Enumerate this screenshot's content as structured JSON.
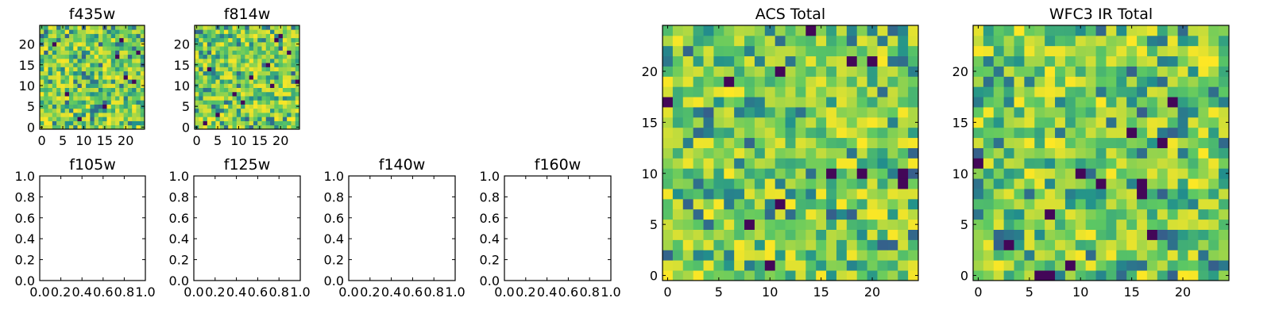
{
  "figure": {
    "background": "#ffffff",
    "colormap": [
      "#440154",
      "#3b528b",
      "#21918c",
      "#5ec962",
      "#fde725"
    ]
  },
  "chart_data": [
    {
      "type": "heatmap",
      "title": "f435w",
      "grid_size": [
        25,
        25
      ],
      "colormap": "viridis",
      "x": {
        "range": [
          -0.5,
          24.5
        ],
        "ticks": [
          0,
          5,
          10,
          15,
          20
        ]
      },
      "y": {
        "range": [
          -0.5,
          24.5
        ],
        "ticks": [
          0,
          5,
          10,
          15,
          20
        ]
      },
      "dark_cells": [
        [
          19,
          21
        ],
        [
          23,
          18
        ],
        [
          20,
          12
        ],
        [
          22,
          11
        ],
        [
          9,
          2
        ],
        [
          18,
          17
        ],
        [
          6,
          8
        ],
        [
          15,
          5
        ],
        [
          3,
          20
        ]
      ]
    },
    {
      "type": "heatmap",
      "title": "f814w",
      "grid_size": [
        25,
        25
      ],
      "colormap": "viridis",
      "x": {
        "range": [
          -0.5,
          24.5
        ],
        "ticks": [
          0,
          5,
          10,
          15,
          20
        ]
      },
      "y": {
        "range": [
          -0.5,
          24.5
        ],
        "ticks": [
          0,
          5,
          10,
          15,
          20
        ]
      },
      "dark_cells": [
        [
          20,
          22
        ],
        [
          19,
          21
        ],
        [
          22,
          18
        ],
        [
          3,
          14
        ],
        [
          13,
          12
        ],
        [
          24,
          11
        ],
        [
          18,
          10
        ],
        [
          11,
          6
        ],
        [
          5,
          3
        ],
        [
          2,
          1
        ],
        [
          17,
          15
        ],
        [
          9,
          8
        ]
      ]
    },
    {
      "type": "line",
      "title": "f105w",
      "empty": true,
      "x": {
        "range": [
          0,
          1
        ],
        "ticks": [
          "0.0",
          "0.2",
          "0.4",
          "0.6",
          "0.8",
          "1.0"
        ]
      },
      "y": {
        "range": [
          0,
          1
        ],
        "ticks": [
          "0.0",
          "0.2",
          "0.4",
          "0.6",
          "0.8",
          "1.0"
        ]
      }
    },
    {
      "type": "line",
      "title": "f125w",
      "empty": true,
      "x": {
        "range": [
          0,
          1
        ],
        "ticks": [
          "0.0",
          "0.2",
          "0.4",
          "0.6",
          "0.8",
          "1.0"
        ]
      },
      "y": {
        "range": [
          0,
          1
        ],
        "ticks": [
          "0.0",
          "0.2",
          "0.4",
          "0.6",
          "0.8",
          "1.0"
        ]
      }
    },
    {
      "type": "line",
      "title": "f140w",
      "empty": true,
      "x": {
        "range": [
          0,
          1
        ],
        "ticks": [
          "0.0",
          "0.2",
          "0.4",
          "0.6",
          "0.8",
          "1.0"
        ]
      },
      "y": {
        "range": [
          0,
          1
        ],
        "ticks": [
          "0.0",
          "0.2",
          "0.4",
          "0.6",
          "0.8",
          "1.0"
        ]
      }
    },
    {
      "type": "line",
      "title": "f160w",
      "empty": true,
      "x": {
        "range": [
          0,
          1
        ],
        "ticks": [
          "0.0",
          "0.2",
          "0.4",
          "0.6",
          "0.8",
          "1.0"
        ]
      },
      "y": {
        "range": [
          0,
          1
        ],
        "ticks": [
          "0.0",
          "0.2",
          "0.4",
          "0.6",
          "0.8",
          "1.0"
        ]
      }
    },
    {
      "type": "heatmap",
      "title": "ACS Total",
      "grid_size": [
        25,
        25
      ],
      "colormap": "viridis",
      "x": {
        "range": [
          -0.5,
          24.5
        ],
        "ticks": [
          0,
          5,
          10,
          15,
          20
        ]
      },
      "y": {
        "range": [
          -0.5,
          24.5
        ],
        "ticks": [
          0,
          5,
          10,
          15,
          20
        ]
      },
      "dark_cells": [
        [
          14,
          24
        ],
        [
          18,
          21
        ],
        [
          20,
          21
        ],
        [
          11,
          20
        ],
        [
          6,
          19
        ],
        [
          0,
          17
        ],
        [
          16,
          10
        ],
        [
          19,
          10
        ],
        [
          23,
          10
        ],
        [
          23,
          9
        ],
        [
          11,
          7
        ],
        [
          10,
          1
        ],
        [
          8,
          5
        ]
      ]
    },
    {
      "type": "heatmap",
      "title": "WFC3 IR Total",
      "grid_size": [
        25,
        25
      ],
      "colormap": "viridis",
      "x": {
        "range": [
          -0.5,
          24.5
        ],
        "ticks": [
          0,
          5,
          10,
          15,
          20
        ]
      },
      "y": {
        "range": [
          -0.5,
          24.5
        ],
        "ticks": [
          0,
          5,
          10,
          15,
          20
        ]
      },
      "dark_cells": [
        [
          19,
          17
        ],
        [
          15,
          14
        ],
        [
          18,
          13
        ],
        [
          0,
          11
        ],
        [
          10,
          10
        ],
        [
          12,
          9
        ],
        [
          16,
          9
        ],
        [
          16,
          8
        ],
        [
          7,
          6
        ],
        [
          9,
          1
        ],
        [
          6,
          0
        ],
        [
          7,
          0
        ],
        [
          3,
          3
        ],
        [
          17,
          4
        ]
      ]
    }
  ]
}
